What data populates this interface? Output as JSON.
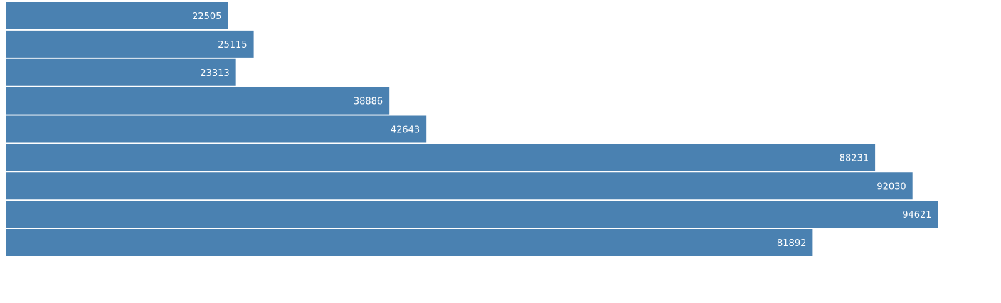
{
  "chart_data": {
    "type": "bar",
    "orientation": "horizontal",
    "values": [
      22505,
      25115,
      23313,
      38886,
      42643,
      88231,
      92030,
      94621,
      81892
    ],
    "xlim": [
      0,
      100000
    ],
    "bar_color": "#4a81b1",
    "label_color": "#ffffff",
    "grid": false
  }
}
